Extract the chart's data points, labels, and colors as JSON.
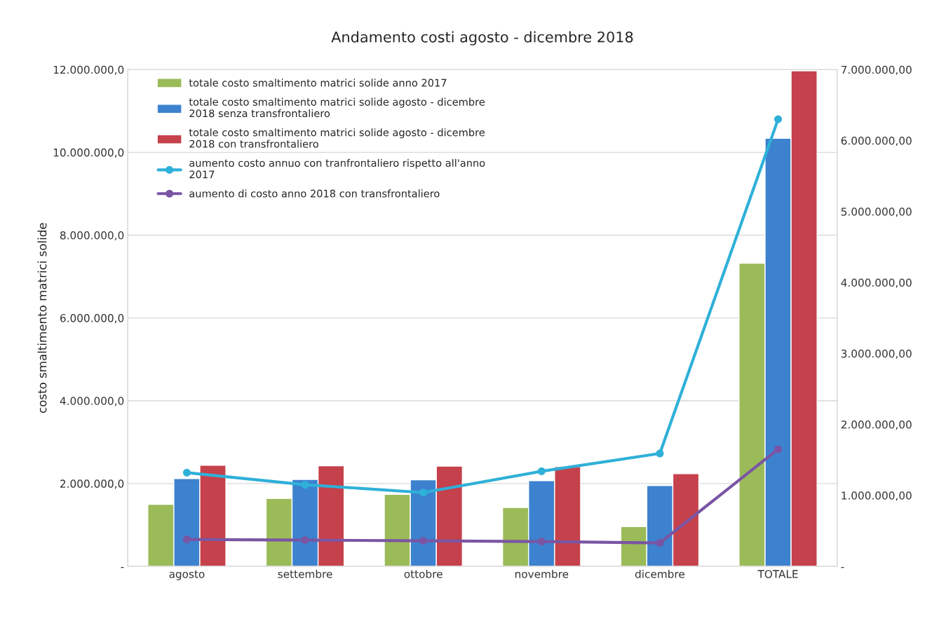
{
  "chart_data": {
    "type": "bar",
    "title": "Andamento costi agosto - dicembre 2018",
    "ylabel": "costo smaltimento matrici solide",
    "categories": [
      "agosto",
      "settembre",
      "ottobre",
      "novembre",
      "dicembre",
      "TOTALE"
    ],
    "series": [
      {
        "name": "totale costo smaltimento matrici solide anno 2017",
        "color": "#9bbb59",
        "values": [
          1500000,
          1640000,
          1740000,
          1420000,
          960000,
          7320000
        ]
      },
      {
        "name": "totale costo smaltimento matrici solide agosto - dicembre 2018 senza transfrontaliero",
        "color": "#3c82cf",
        "values": [
          2120000,
          2100000,
          2090000,
          2070000,
          1950000,
          10340000
        ]
      },
      {
        "name": "totale costo smaltimento matrici solide agosto - dicembre 2018 con transfrontaliero",
        "color": "#c5414b",
        "values": [
          2440000,
          2430000,
          2420000,
          2410000,
          2240000,
          11970000
        ]
      },
      {
        "name": "aumento costo annuo con tranfrontaliero rispetto all'anno 2017",
        "type": "line",
        "axis": "y2",
        "color": "#2fb0d8",
        "values": [
          1320000,
          1150000,
          1040000,
          1340000,
          1590000,
          6300000
        ]
      },
      {
        "name": "aumento di costo anno 2018 con transfrontaliero",
        "type": "line",
        "axis": "y2",
        "color": "#7a55a3",
        "values": [
          380000,
          370000,
          360000,
          350000,
          330000,
          1650000
        ]
      }
    ],
    "ylim": [
      0,
      12000000
    ],
    "yticks": [
      {
        "value": 0,
        "label": "-"
      },
      {
        "value": 2000000,
        "label": "2.000.000,0"
      },
      {
        "value": 4000000,
        "label": "4.000.000,0"
      },
      {
        "value": 6000000,
        "label": "6.000.000,0"
      },
      {
        "value": 8000000,
        "label": "8.000.000,0"
      },
      {
        "value": 10000000,
        "label": "10.000.000,0"
      },
      {
        "value": 12000000,
        "label": "12.000.000,0"
      }
    ],
    "y2lim": [
      0,
      7000000
    ],
    "y2ticks": [
      {
        "value": 0,
        "label": "-"
      },
      {
        "value": 1000000,
        "label": "1.000.000,00"
      },
      {
        "value": 2000000,
        "label": "2.000.000,00"
      },
      {
        "value": 3000000,
        "label": "3.000.000,00"
      },
      {
        "value": 4000000,
        "label": "4.000.000,00"
      },
      {
        "value": 5000000,
        "label": "5.000.000,00"
      },
      {
        "value": 6000000,
        "label": "6.000.000,00"
      },
      {
        "value": 7000000,
        "label": "7.000.000,00"
      }
    ],
    "grid": "y",
    "legend": "top left",
    "marker": "circle",
    "line_style": "solid"
  }
}
